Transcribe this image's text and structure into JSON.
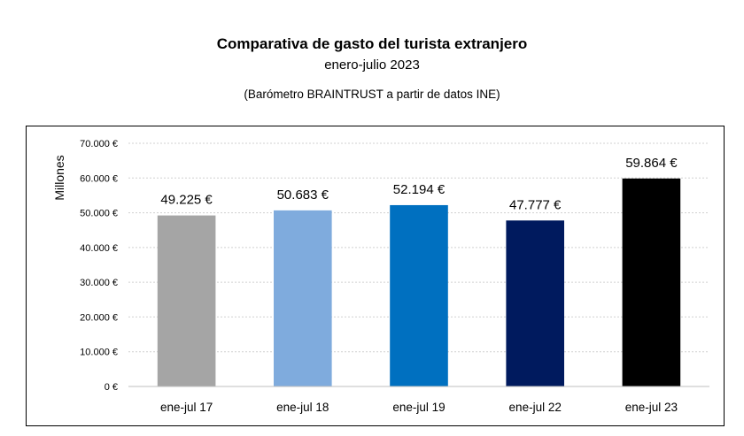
{
  "header": {
    "title": "Comparativa de gasto del turista extranjero",
    "subtitle": "enero-julio 2023",
    "source": "(Barómetro BRAINTRUST a partir de datos INE)"
  },
  "chart_data": {
    "type": "bar",
    "title": "Comparativa de gasto del turista extranjero",
    "subtitle": "enero-julio 2023",
    "ylabel": "Millones",
    "xlabel": "",
    "ylim": [
      0,
      70000
    ],
    "ytick_values": [
      0,
      10000,
      20000,
      30000,
      40000,
      50000,
      60000,
      70000
    ],
    "ytick_labels": [
      "0 €",
      "10.000 €",
      "20.000 €",
      "30.000 €",
      "40.000 €",
      "50.000 €",
      "60.000 €",
      "70.000 €"
    ],
    "categories": [
      "ene-jul 17",
      "ene-jul 18",
      "ene-jul 19",
      "ene-jul 22",
      "ene-jul 23"
    ],
    "values": [
      49225,
      50683,
      52194,
      47777,
      59864
    ],
    "data_labels": [
      "49.225 €",
      "50.683 €",
      "52.194 €",
      "47.777 €",
      "59.864 €"
    ],
    "colors": [
      "#a5a5a5",
      "#7fabdd",
      "#0070c0",
      "#001a5e",
      "#000000"
    ],
    "grid": true,
    "legend": "none"
  }
}
